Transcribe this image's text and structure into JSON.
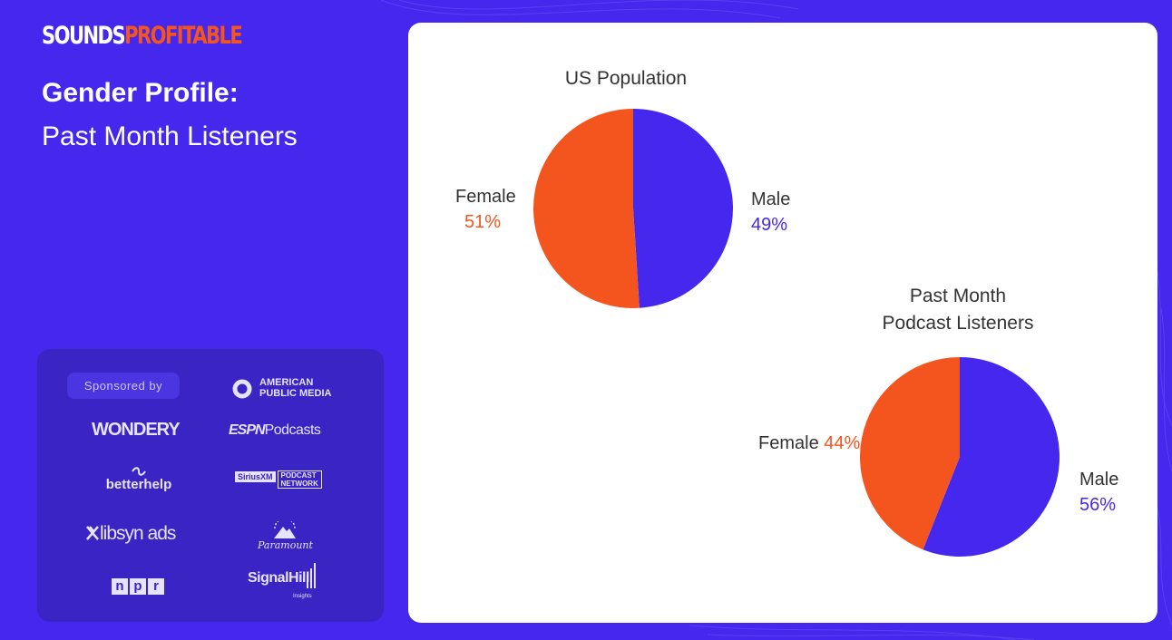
{
  "brand": {
    "part1": "SOUNDS",
    "part2": "PROFITABLE"
  },
  "title": {
    "line1": "Gender Profile:",
    "line2": "Past Month Listeners"
  },
  "sponsors": {
    "label": "Sponsored by",
    "american_public_media_1": "AMERICAN",
    "american_public_media_2": "PUBLIC MEDIA",
    "wondery": "WONDERY",
    "espn_1": "ESPN",
    "espn_2": "Podcasts",
    "betterhelp": "betterhelp",
    "siriusxm": "SiriusXM",
    "siriusxm_podcast": "PODCAST",
    "siriusxm_network": "NETWORK",
    "libsyn": "libsyn ads",
    "paramount": "Paramount",
    "npr": "npr",
    "signalhill": "SignalHill",
    "signalhill_sub": "Insights"
  },
  "colors": {
    "female": "#F4551E",
    "male": "#4527ED"
  },
  "chart_data": [
    {
      "type": "pie",
      "title": "US Population",
      "slices": [
        {
          "label": "Male",
          "value": 49,
          "display": "49%"
        },
        {
          "label": "Female",
          "value": 51,
          "display": "51%"
        }
      ]
    },
    {
      "type": "pie",
      "title_line1": "Past Month",
      "title_line2": "Podcast Listeners",
      "slices": [
        {
          "label": "Male",
          "value": 56,
          "display": "56%"
        },
        {
          "label": "Female",
          "value": 44,
          "display": "44%"
        }
      ]
    }
  ]
}
